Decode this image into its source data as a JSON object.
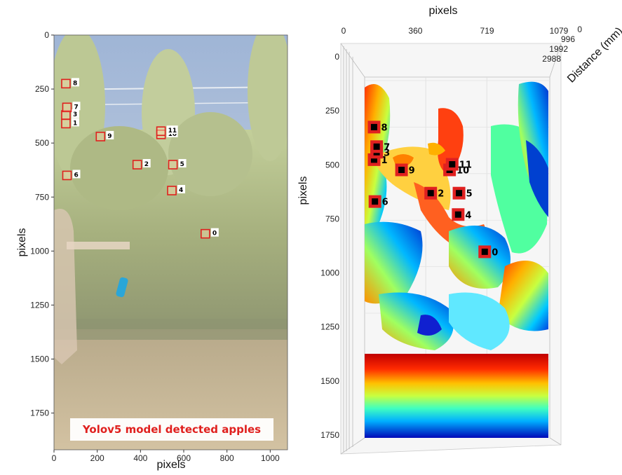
{
  "chart_data": [
    {
      "type": "scatter",
      "title": "",
      "xlabel": "pixels",
      "ylabel": "pixels",
      "xlim": [
        0,
        1080
      ],
      "ylim": [
        0,
        1920
      ],
      "xticks": [
        "0",
        "200",
        "400",
        "600",
        "800",
        "1000"
      ],
      "yticks": [
        "0",
        "250",
        "500",
        "750",
        "1000",
        "1250",
        "1500",
        "1750"
      ],
      "banner": "Yolov5 model detected apples",
      "colors": {
        "box": "#e0201e",
        "banner": "#e0201e",
        "sky": "#b9c9de",
        "foliage": "#a8b27e",
        "ground": "#c9b594"
      },
      "series": [
        {
          "name": "",
          "points": [
            {
              "label": "0",
              "x": 700,
              "y": 920
            },
            {
              "label": "1",
              "x": 55,
              "y": 410
            },
            {
              "label": "2",
              "x": 385,
              "y": 600
            },
            {
              "label": "3",
              "x": 55,
              "y": 370
            },
            {
              "label": "4",
              "x": 545,
              "y": 720
            },
            {
              "label": "5",
              "x": 550,
              "y": 600
            },
            {
              "label": "6",
              "x": 60,
              "y": 650
            },
            {
              "label": "7",
              "x": 60,
              "y": 335
            },
            {
              "label": "8",
              "x": 55,
              "y": 225
            },
            {
              "label": "9",
              "x": 215,
              "y": 470
            },
            {
              "label": "10",
              "x": 495,
              "y": 460
            },
            {
              "label": "11",
              "x": 495,
              "y": 445
            }
          ]
        }
      ]
    },
    {
      "type": "scatter",
      "title": "",
      "xlabel": "pixels",
      "ylabel": "pixels",
      "zlabel": "Distance (mm)",
      "xlim": [
        0,
        1079
      ],
      "ylim": [
        0,
        1920
      ],
      "xticks": [
        "0",
        "360",
        "719",
        "1079"
      ],
      "yticks": [
        "0",
        "250",
        "500",
        "750",
        "1000",
        "1250",
        "1500",
        "1750"
      ],
      "zticks": [
        "0",
        "996",
        "1992",
        "2988"
      ],
      "colormap": [
        "#0000c8",
        "#0060ff",
        "#00c8ff",
        "#50ffb0",
        "#d8ff30",
        "#ffb000",
        "#ff3000",
        "#a00000"
      ],
      "colors": {
        "marker": "#e02020"
      },
      "series": [
        {
          "name": "",
          "points": [
            {
              "label": "0",
              "x": 700,
              "y": 920
            },
            {
              "label": "1",
              "x": 55,
              "y": 425
            },
            {
              "label": "2",
              "x": 385,
              "y": 605
            },
            {
              "label": "3",
              "x": 70,
              "y": 385
            },
            {
              "label": "4",
              "x": 545,
              "y": 720
            },
            {
              "label": "5",
              "x": 550,
              "y": 605
            },
            {
              "label": "6",
              "x": 60,
              "y": 650
            },
            {
              "label": "7",
              "x": 70,
              "y": 355
            },
            {
              "label": "8",
              "x": 55,
              "y": 250
            },
            {
              "label": "9",
              "x": 215,
              "y": 480
            },
            {
              "label": "10",
              "x": 495,
              "y": 480
            },
            {
              "label": "11",
              "x": 510,
              "y": 450
            }
          ]
        }
      ]
    }
  ]
}
